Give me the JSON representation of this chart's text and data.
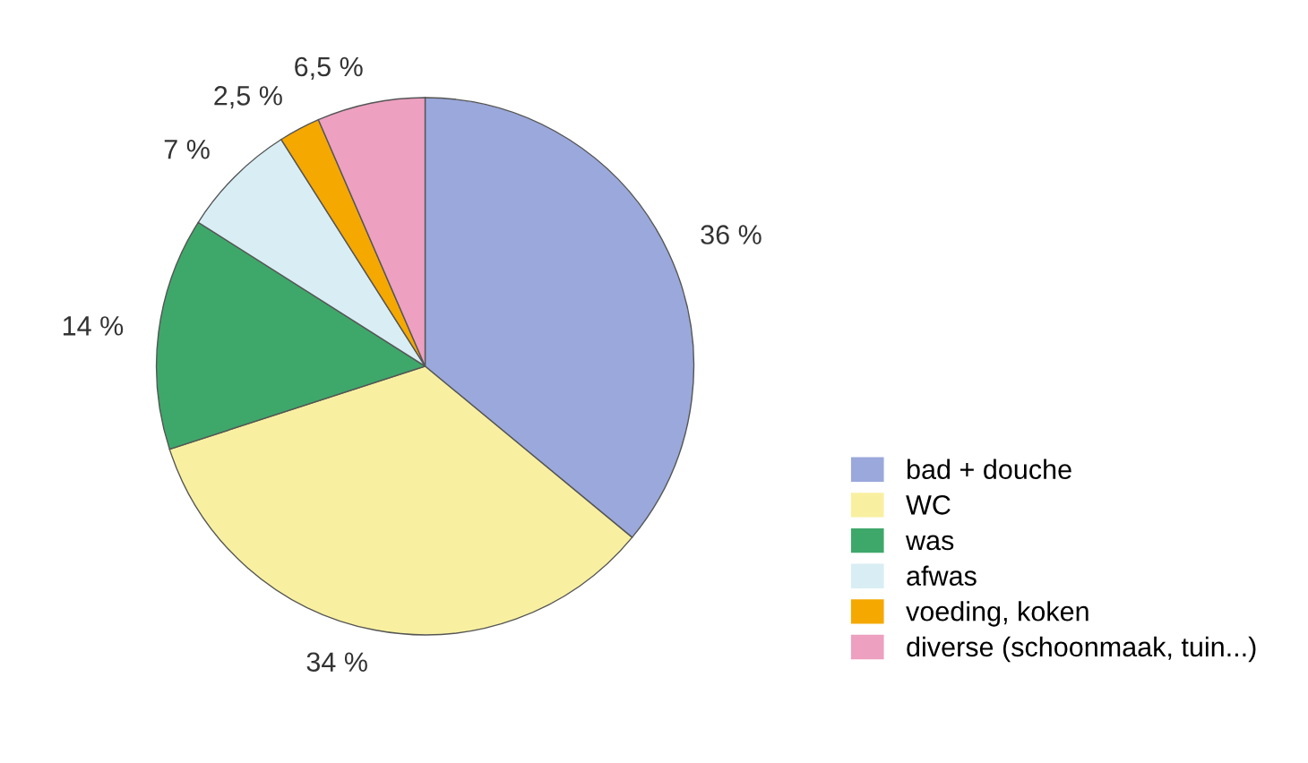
{
  "chart_data": {
    "type": "pie",
    "categories": [
      "bad + douche",
      "WC",
      "was",
      "afwas",
      "voeding, koken",
      "diverse (schoonmaak, tuin...)"
    ],
    "values": [
      36,
      34,
      14,
      7,
      2.5,
      6.5
    ],
    "value_labels": [
      "36 %",
      "34 %",
      "14 %",
      "7 %",
      "2,5 %",
      "6,5 %"
    ],
    "colors": [
      "#9aa8dc",
      "#f8f0a0",
      "#3ea86a",
      "#d8eef4",
      "#f5a800",
      "#eda0c0"
    ],
    "legend": "bottom right"
  }
}
